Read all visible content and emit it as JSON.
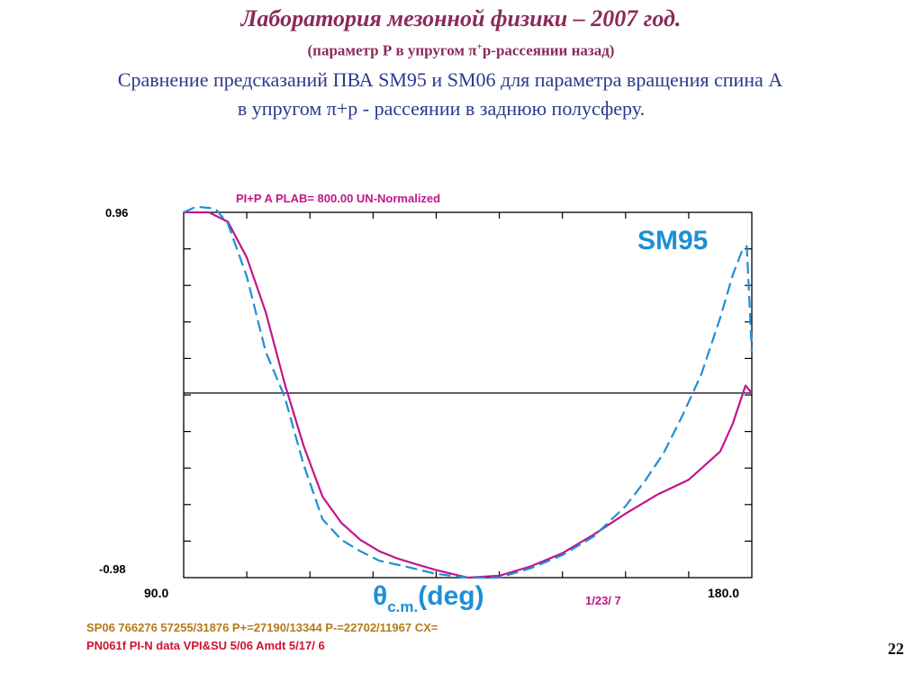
{
  "header": {
    "title": "Лаборатория мезонной физики – 2007 год.",
    "subtitle_prefix": "(параметр Р в упругом ",
    "subtitle_pi": "π",
    "subtitle_sup": "+",
    "subtitle_rest": "p-рассеянии назад)",
    "line3": "Сравнение предсказаний ПВА SM95 и SM06 для параметра вращения спина А",
    "line4": "в  упругом π+p - рассеянии в заднюю полусферу."
  },
  "page_number": "22",
  "chart_data": {
    "type": "line",
    "title": "PI+P  A     PLAB=  800.00 UN-Normalized",
    "annotation": "SM95",
    "x_tick_left": "90.0",
    "x_tick_right": "180.0",
    "y_tick_top": "0.96",
    "y_tick_bottom": "-0.98",
    "xlabel_main": "θ",
    "xlabel_sub": "c.m.",
    "xlabel_unit": "(deg)",
    "date": "1/23/ 7",
    "footer1": "SP06 766276 57255/31876 P+=27190/13344 P-=22702/11967 CX=",
    "footer2": "PN061f  PI-N data VPI&SU   5/06   Amdt  5/17/ 6",
    "xlim": [
      90,
      180
    ],
    "ylim": [
      -0.98,
      0.96
    ],
    "grid": false,
    "colors": {
      "axis": "#000000",
      "title": "#c0168a",
      "annotation": "#1e8fd6",
      "date": "#c0168a",
      "footer1": "#b5791b",
      "footer2": "#d01030"
    },
    "series": [
      {
        "label": "SM06",
        "color": "#c0168a",
        "style": "solid",
        "x": [
          90,
          94,
          97,
          100,
          103,
          106,
          109,
          112,
          115,
          118,
          121,
          124,
          127,
          130,
          135,
          140,
          145,
          150,
          155,
          160,
          165,
          170,
          175,
          177,
          179,
          180
        ],
        "y": [
          0.96,
          0.96,
          0.91,
          0.72,
          0.43,
          0.05,
          -0.28,
          -0.55,
          -0.69,
          -0.78,
          -0.84,
          -0.88,
          -0.91,
          -0.94,
          -0.98,
          -0.97,
          -0.92,
          -0.85,
          -0.75,
          -0.64,
          -0.54,
          -0.46,
          -0.31,
          -0.16,
          0.04,
          0.0
        ]
      },
      {
        "label": "SM95",
        "color": "#1e8fd6",
        "style": "dashed",
        "x": [
          90,
          92,
          95,
          97,
          100,
          103,
          106,
          109,
          112,
          115,
          118,
          121,
          125,
          130,
          135,
          140,
          145,
          150,
          155,
          160,
          163,
          166,
          169,
          172,
          175,
          177,
          178.5,
          179.2,
          180
        ],
        "y": [
          0.96,
          0.99,
          0.98,
          0.9,
          0.62,
          0.22,
          -0.02,
          -0.38,
          -0.67,
          -0.78,
          -0.84,
          -0.89,
          -0.92,
          -0.96,
          -0.98,
          -0.98,
          -0.93,
          -0.86,
          -0.76,
          -0.6,
          -0.47,
          -0.32,
          -0.12,
          0.1,
          0.4,
          0.63,
          0.76,
          0.78,
          0.22
        ]
      }
    ]
  }
}
